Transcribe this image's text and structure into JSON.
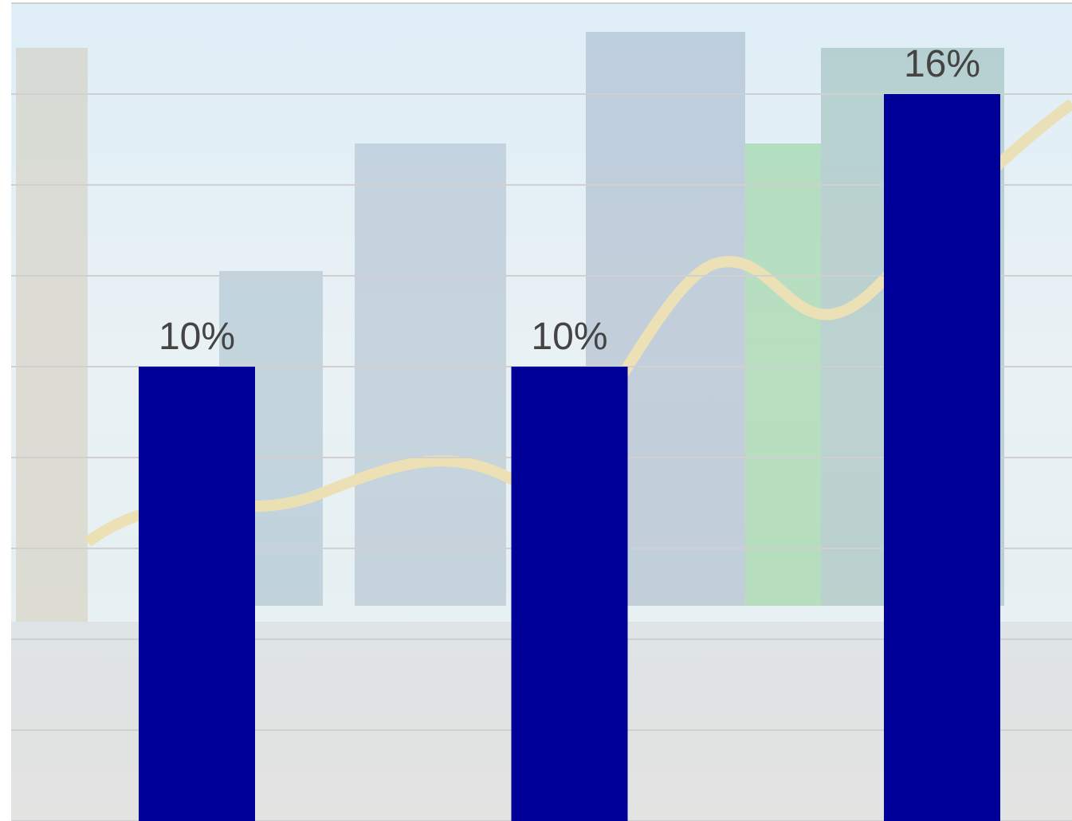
{
  "chart_data": {
    "type": "bar",
    "categories": [
      null,
      null,
      null
    ],
    "values": [
      10,
      10,
      16
    ],
    "value_labels": [
      "10%",
      "10%",
      "16%"
    ],
    "color": "#000099",
    "ylim": [
      0,
      18
    ],
    "yticks": [
      0,
      2,
      4,
      6,
      8,
      10,
      12,
      14,
      16,
      18
    ],
    "grid": true
  }
}
